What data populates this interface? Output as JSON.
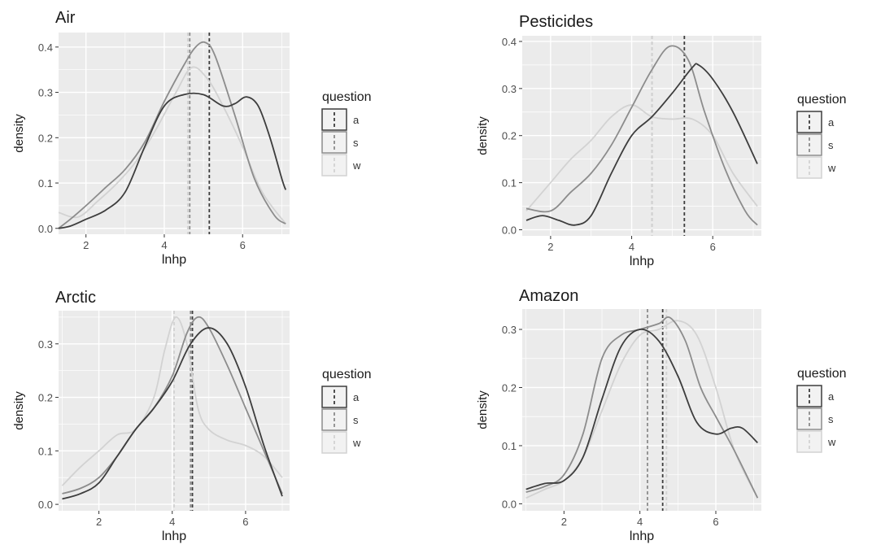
{
  "chart_data": [
    {
      "type": "line",
      "title": "Air",
      "xlabel": "lnhp",
      "ylabel": "density",
      "xlim": [
        1.3,
        7.2
      ],
      "ylim": [
        -0.013,
        0.432
      ],
      "xticks": [
        2,
        4,
        6
      ],
      "yticks": [
        0.0,
        0.1,
        0.2,
        0.3,
        0.4
      ],
      "ytick_labels": [
        "0.0",
        "0.1",
        "0.2",
        "0.3",
        "0.4"
      ],
      "legend_title": "question",
      "legend_position": "right",
      "grid": true,
      "series": [
        {
          "name": "a",
          "color": "#3d3d3d",
          "x": [
            1.3,
            1.6,
            2.0,
            2.5,
            3.0,
            3.5,
            4.0,
            4.5,
            5.0,
            5.5,
            5.8,
            6.1,
            6.4,
            6.7,
            7.0,
            7.1
          ],
          "y": [
            0.0,
            0.005,
            0.02,
            0.04,
            0.08,
            0.18,
            0.27,
            0.295,
            0.295,
            0.27,
            0.275,
            0.29,
            0.27,
            0.2,
            0.11,
            0.085
          ],
          "mean": 5.15
        },
        {
          "name": "s",
          "color": "#8c8c8c",
          "x": [
            1.3,
            1.6,
            2.0,
            2.5,
            3.0,
            3.5,
            4.0,
            4.5,
            4.8,
            5.05,
            5.3,
            5.8,
            6.3,
            6.8,
            7.1
          ],
          "y": [
            0.0,
            0.02,
            0.05,
            0.09,
            0.13,
            0.19,
            0.28,
            0.36,
            0.4,
            0.41,
            0.38,
            0.25,
            0.11,
            0.03,
            0.01
          ],
          "mean": 4.65
        },
        {
          "name": "w",
          "color": "#d2d2d2",
          "x": [
            1.3,
            1.8,
            2.3,
            2.8,
            3.3,
            3.8,
            4.3,
            4.7,
            5.1,
            5.5,
            6.0,
            6.5,
            7.1
          ],
          "y": [
            0.035,
            0.025,
            0.06,
            0.1,
            0.15,
            0.22,
            0.3,
            0.355,
            0.33,
            0.27,
            0.18,
            0.08,
            0.01
          ],
          "mean": 4.6
        }
      ]
    },
    {
      "type": "line",
      "title": "Pesticides",
      "xlabel": "lnhp",
      "ylabel": "density",
      "xlim": [
        1.3,
        7.2
      ],
      "ylim": [
        -0.013,
        0.412
      ],
      "xticks": [
        2,
        4,
        6
      ],
      "yticks": [
        0.0,
        0.1,
        0.2,
        0.3,
        0.4
      ],
      "ytick_labels": [
        "0.0",
        "0.1",
        "0.2",
        "0.3",
        "0.4"
      ],
      "legend_title": "question",
      "legend_position": "right",
      "grid": true,
      "series": [
        {
          "name": "a",
          "color": "#3d3d3d",
          "x": [
            1.4,
            1.8,
            2.2,
            2.6,
            3.0,
            3.5,
            4.0,
            4.5,
            5.0,
            5.5,
            5.65,
            6.0,
            6.5,
            7.1
          ],
          "y": [
            0.02,
            0.03,
            0.02,
            0.01,
            0.03,
            0.12,
            0.2,
            0.24,
            0.29,
            0.345,
            0.35,
            0.32,
            0.25,
            0.14
          ],
          "mean": 5.3
        },
        {
          "name": "s",
          "color": "#8c8c8c",
          "x": [
            1.4,
            2.0,
            2.5,
            3.0,
            3.5,
            4.0,
            4.5,
            4.95,
            5.4,
            5.8,
            6.3,
            6.8,
            7.1
          ],
          "y": [
            0.045,
            0.04,
            0.08,
            0.12,
            0.18,
            0.26,
            0.34,
            0.39,
            0.36,
            0.25,
            0.13,
            0.04,
            0.01
          ],
          "mean": 4.5
        },
        {
          "name": "w",
          "color": "#d2d2d2",
          "x": [
            1.4,
            2.0,
            2.5,
            3.0,
            3.5,
            4.0,
            4.5,
            5.0,
            5.5,
            6.0,
            6.5,
            7.1
          ],
          "y": [
            0.04,
            0.1,
            0.15,
            0.19,
            0.24,
            0.265,
            0.24,
            0.235,
            0.235,
            0.2,
            0.12,
            0.05
          ],
          "mean": 4.5
        }
      ]
    },
    {
      "type": "line",
      "title": "Arctic",
      "xlabel": "lnhp",
      "ylabel": "density",
      "xlim": [
        0.9,
        7.2
      ],
      "ylim": [
        -0.012,
        0.362
      ],
      "xticks": [
        2,
        4,
        6
      ],
      "yticks": [
        0.0,
        0.1,
        0.2,
        0.3
      ],
      "ytick_labels": [
        "0.0",
        "0.1",
        "0.2",
        "0.3"
      ],
      "legend_title": "question",
      "legend_position": "right",
      "grid": true,
      "series": [
        {
          "name": "a",
          "color": "#3d3d3d",
          "x": [
            1.0,
            1.5,
            2.0,
            2.5,
            3.0,
            3.5,
            4.0,
            4.5,
            5.0,
            5.5,
            6.0,
            6.5,
            7.0
          ],
          "y": [
            0.01,
            0.02,
            0.04,
            0.09,
            0.14,
            0.18,
            0.23,
            0.3,
            0.33,
            0.3,
            0.22,
            0.11,
            0.015
          ],
          "mean": 4.55
        },
        {
          "name": "s",
          "color": "#8c8c8c",
          "x": [
            1.0,
            1.5,
            2.0,
            2.5,
            3.0,
            3.5,
            4.0,
            4.4,
            4.7,
            5.0,
            5.5,
            6.0,
            6.5,
            7.0
          ],
          "y": [
            0.02,
            0.03,
            0.05,
            0.09,
            0.14,
            0.18,
            0.24,
            0.32,
            0.35,
            0.33,
            0.26,
            0.18,
            0.1,
            0.02
          ],
          "mean": 4.5
        },
        {
          "name": "w",
          "color": "#d2d2d2",
          "x": [
            1.0,
            1.5,
            2.0,
            2.5,
            3.0,
            3.5,
            3.8,
            4.1,
            4.4,
            4.7,
            5.0,
            5.5,
            6.0,
            6.5,
            7.0
          ],
          "y": [
            0.035,
            0.07,
            0.1,
            0.13,
            0.14,
            0.2,
            0.29,
            0.35,
            0.3,
            0.18,
            0.14,
            0.12,
            0.11,
            0.09,
            0.05
          ],
          "mean": 4.05
        }
      ]
    },
    {
      "type": "line",
      "title": "Amazon",
      "xlabel": "lnhp",
      "ylabel": "density",
      "xlim": [
        0.9,
        7.2
      ],
      "ylim": [
        -0.012,
        0.335
      ],
      "xticks": [
        2,
        4,
        6
      ],
      "yticks": [
        0.0,
        0.1,
        0.2,
        0.3
      ],
      "ytick_labels": [
        "0.0",
        "0.1",
        "0.2",
        "0.3"
      ],
      "legend_title": "question",
      "legend_position": "right",
      "grid": true,
      "series": [
        {
          "name": "a",
          "color": "#3d3d3d",
          "x": [
            1.0,
            1.5,
            2.0,
            2.5,
            3.0,
            3.5,
            4.0,
            4.5,
            5.0,
            5.5,
            6.0,
            6.4,
            6.7,
            7.1
          ],
          "y": [
            0.025,
            0.035,
            0.04,
            0.08,
            0.18,
            0.27,
            0.3,
            0.28,
            0.22,
            0.14,
            0.12,
            0.13,
            0.13,
            0.105
          ],
          "mean": 4.6
        },
        {
          "name": "s",
          "color": "#8c8c8c",
          "x": [
            1.0,
            1.5,
            2.0,
            2.5,
            3.0,
            3.5,
            4.0,
            4.5,
            4.8,
            5.2,
            5.6,
            6.0,
            6.5,
            7.1
          ],
          "y": [
            0.02,
            0.03,
            0.05,
            0.12,
            0.25,
            0.29,
            0.3,
            0.31,
            0.32,
            0.28,
            0.2,
            0.15,
            0.09,
            0.01
          ],
          "mean": 4.2
        },
        {
          "name": "w",
          "color": "#d2d2d2",
          "x": [
            1.0,
            1.5,
            2.0,
            2.5,
            3.0,
            3.5,
            4.0,
            4.5,
            5.0,
            5.5,
            6.0,
            6.5,
            7.1
          ],
          "y": [
            0.01,
            0.025,
            0.04,
            0.08,
            0.16,
            0.24,
            0.29,
            0.3,
            0.315,
            0.29,
            0.2,
            0.09,
            0.01
          ],
          "mean": 4.7
        }
      ]
    }
  ]
}
